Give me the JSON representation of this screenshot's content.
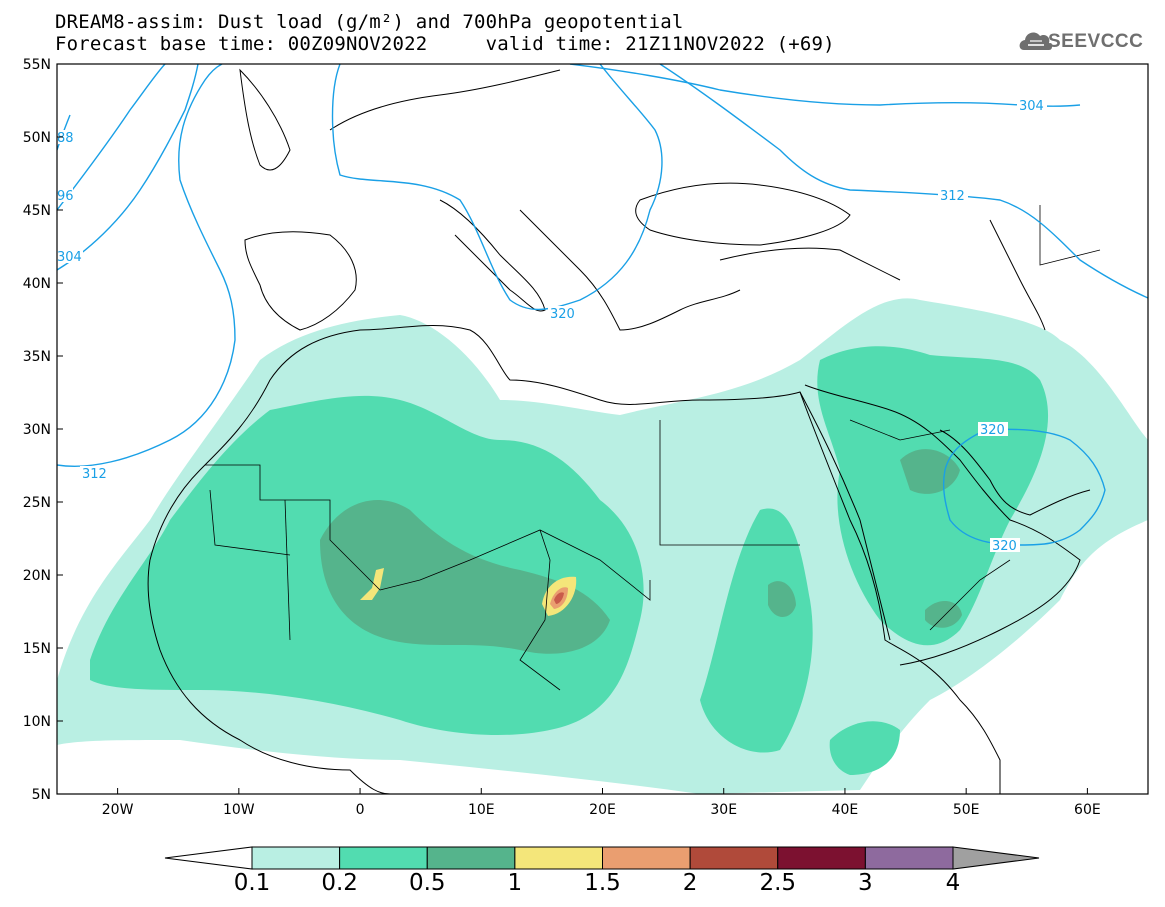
{
  "header": {
    "title_line1": "DREAM8-assim: Dust load (g/m²) and 700hPa geopotential",
    "title_line2": "Forecast base time: 00Z09NOV2022     valid time: 21Z11NOV2022 (+69)"
  },
  "logo": {
    "text": "SEEVCCC",
    "icon": "cloud-logo-icon",
    "color": "#6f6f6f"
  },
  "map": {
    "projection": "lat-lon",
    "lon_range": [
      -25,
      65
    ],
    "lat_range": [
      5,
      55
    ],
    "lat_ticks": [
      "55N",
      "50N",
      "45N",
      "40N",
      "35N",
      "30N",
      "25N",
      "20N",
      "15N",
      "10N",
      "5N"
    ],
    "lon_ticks": [
      "20W",
      "10W",
      "0",
      "10E",
      "20E",
      "30E",
      "40E",
      "50E",
      "60E"
    ],
    "contour_labels": {
      "l304_ne": "304",
      "l312_ne": "312",
      "l320_med": "320",
      "l304_w": "304",
      "l312_w": "312",
      "l296_w": "96",
      "l288_w": "88",
      "l320_gulf_n": "320",
      "l320_gulf_s": "320"
    },
    "contour_color": "#1aa0e6"
  },
  "colorbar": {
    "labels": [
      "0.1",
      "0.2",
      "0.5",
      "1",
      "1.5",
      "2",
      "2.5",
      "3",
      "4"
    ],
    "colors": [
      "#b9efe3",
      "#52dcb0",
      "#55b48c",
      "#f4e67a",
      "#ea9e70",
      "#b04a3a",
      "#7c1130",
      "#8e6a9e",
      "#a0a0a0"
    ]
  }
}
